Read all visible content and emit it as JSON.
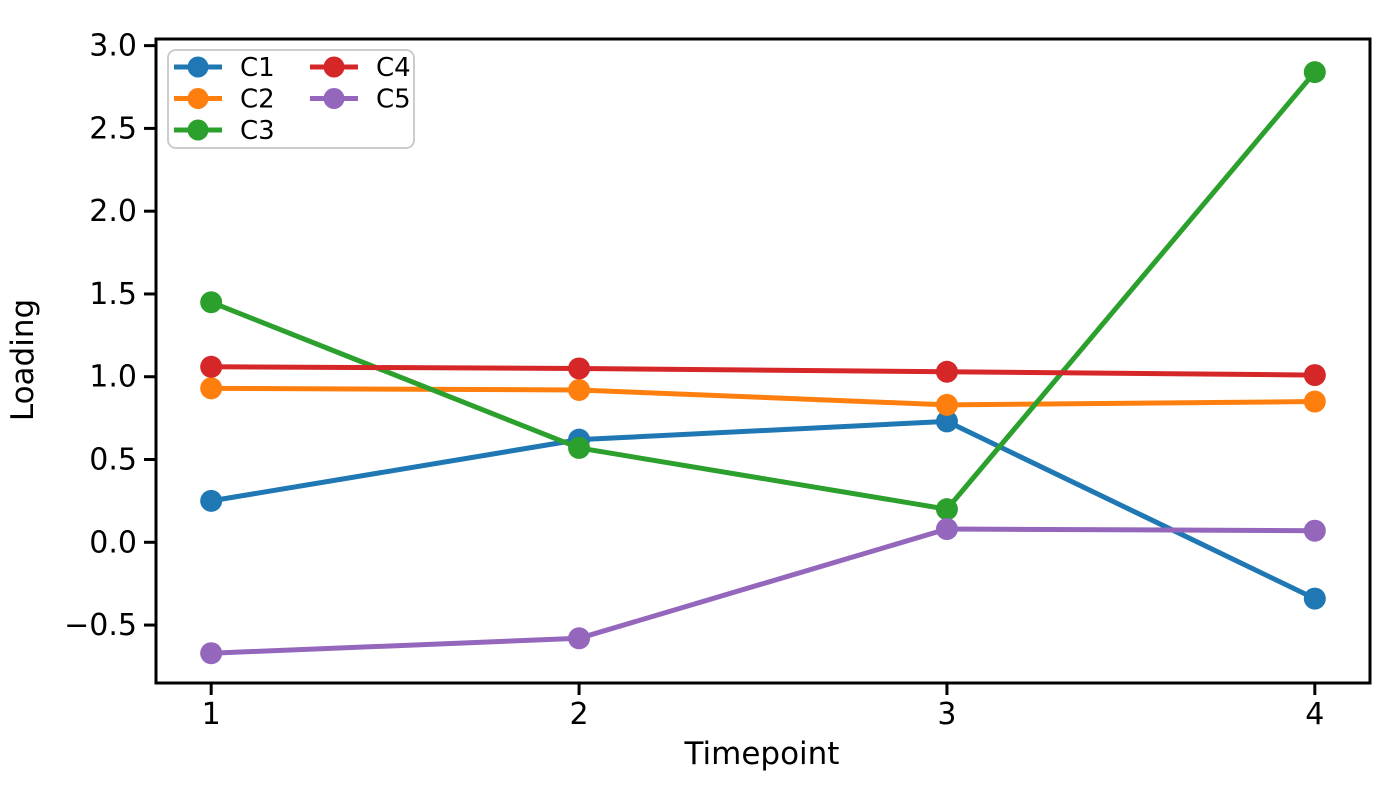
{
  "figure": {
    "background": "#ffffff",
    "axis_color": "#000000"
  },
  "chart_data": {
    "type": "line",
    "title": "",
    "xlabel": "Timepoint",
    "ylabel": "Loading",
    "x": [
      1,
      2,
      3,
      4
    ],
    "series": [
      {
        "name": "C1",
        "color": "#1f77b4",
        "values": [
          0.25,
          0.62,
          0.73,
          -0.34
        ]
      },
      {
        "name": "C2",
        "color": "#ff7f0e",
        "values": [
          0.93,
          0.92,
          0.83,
          0.85
        ]
      },
      {
        "name": "C3",
        "color": "#2ca02c",
        "values": [
          1.45,
          0.57,
          0.2,
          2.84
        ]
      },
      {
        "name": "C4",
        "color": "#d62728",
        "values": [
          1.06,
          1.05,
          1.03,
          1.01
        ]
      },
      {
        "name": "C5",
        "color": "#9467bd",
        "values": [
          -0.67,
          -0.58,
          0.08,
          0.07
        ]
      }
    ],
    "xlim": [
      0.85,
      4.15
    ],
    "ylim": [
      -0.85,
      3.04
    ],
    "xticks": [
      {
        "v": 1,
        "label": "1"
      },
      {
        "v": 2,
        "label": "2"
      },
      {
        "v": 3,
        "label": "3"
      },
      {
        "v": 4,
        "label": "4"
      }
    ],
    "yticks": [
      {
        "v": -0.5,
        "label": "−0.5"
      },
      {
        "v": 0.0,
        "label": "0.0"
      },
      {
        "v": 0.5,
        "label": "0.5"
      },
      {
        "v": 1.0,
        "label": "1.0"
      },
      {
        "v": 1.5,
        "label": "1.5"
      },
      {
        "v": 2.0,
        "label": "2.0"
      },
      {
        "v": 2.5,
        "label": "2.5"
      },
      {
        "v": 3.0,
        "label": "3.0"
      }
    ],
    "legend": {
      "position": "upper-left",
      "columns": 2,
      "entries": [
        "C1",
        "C2",
        "C3",
        "C4",
        "C5"
      ],
      "border_color": "#cccccc",
      "background": "#ffffff"
    },
    "grid": false,
    "marker": "circle"
  }
}
